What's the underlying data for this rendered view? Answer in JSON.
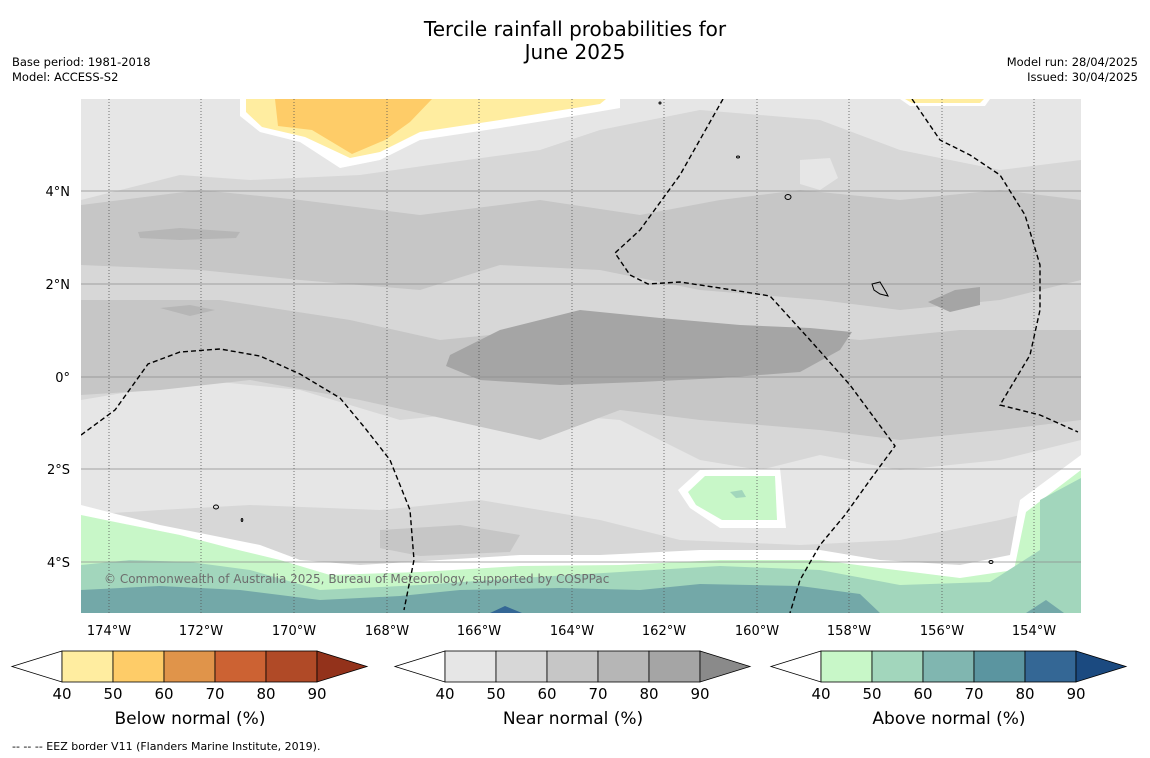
{
  "title_line1": "Tercile rainfall probabilities for",
  "title_line2": "June 2025",
  "base_period": "Base period: 1981-2018",
  "model": "Model: ACCESS-S2",
  "model_run": "Model run: 28/04/2025",
  "issued": "Issued: 30/04/2025",
  "credit": "© Commonwealth of Australia 2025, Bureau of Meteorology, supported by COSPPac",
  "footnote": "--  --  -- EEZ border V11 (Flanders Marine Institute, 2019).",
  "map": {
    "lon_range": [
      -174.6,
      -152.9
    ],
    "lat_range": [
      -5.2,
      5.8
    ],
    "lon_ticks": [
      "174°W",
      "172°W",
      "170°W",
      "168°W",
      "166°W",
      "164°W",
      "162°W",
      "160°W",
      "158°W",
      "156°W",
      "154°W"
    ],
    "lat_ticks": [
      "4°N",
      "2°N",
      "0°",
      "2°S",
      "4°S"
    ],
    "background_category": "near normal 40-60%"
  },
  "colorbars": [
    {
      "label": "Below normal (%)",
      "ticks": [
        "40",
        "50",
        "60",
        "70",
        "80",
        "90"
      ],
      "colors": [
        "#ffeda0",
        "#fecc68",
        "#e0944a",
        "#cc6233",
        "#b04a27",
        "#93321b"
      ]
    },
    {
      "label": "Near normal (%)",
      "ticks": [
        "40",
        "50",
        "60",
        "70",
        "80",
        "90"
      ],
      "colors": [
        "#e6e6e6",
        "#d7d7d7",
        "#c6c6c6",
        "#b6b6b6",
        "#a5a5a5",
        "#8a8a8a"
      ]
    },
    {
      "label": "Above normal (%)",
      "ticks": [
        "40",
        "50",
        "60",
        "70",
        "80",
        "90"
      ],
      "colors": [
        "#c8f7c8",
        "#a2d6bc",
        "#80b6b0",
        "#5b95a0",
        "#346795",
        "#1b4a80"
      ]
    }
  ],
  "colors": {
    "below_40": "#ffeda0",
    "below_50": "#fecc68",
    "near_40": "#e6e6e6",
    "near_50": "#d7d7d7",
    "near_60": "#c6c6c6",
    "near_70": "#a5a5a5",
    "above_40": "#c8f7c8",
    "above_50": "#a2d6bc",
    "above_60": "#73a8a8",
    "above_70": "#346795"
  }
}
